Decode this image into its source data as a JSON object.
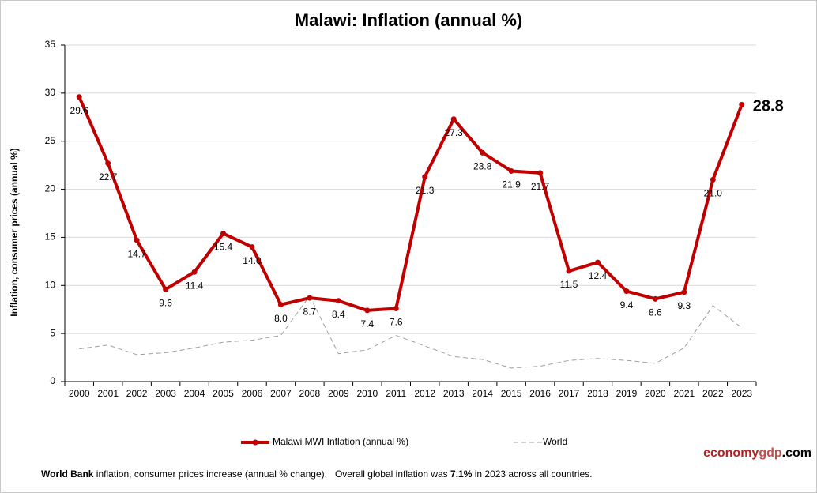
{
  "chart_data": {
    "type": "line",
    "title": "Malawi: Inflation (annual %)",
    "y_label": "Inflation, consumer prices (annual %)",
    "categories": [
      "2000",
      "2001",
      "2002",
      "2003",
      "2004",
      "2005",
      "2006",
      "2007",
      "2008",
      "2009",
      "2010",
      "2011",
      "2012",
      "2013",
      "2014",
      "2015",
      "2016",
      "2017",
      "2018",
      "2019",
      "2020",
      "2021",
      "2022",
      "2023"
    ],
    "series": [
      {
        "name": "Malawi MWI Inflation (annual %)",
        "color": "#c00000",
        "values": [
          29.6,
          22.7,
          14.7,
          9.6,
          11.4,
          15.4,
          14.0,
          8.0,
          8.7,
          8.4,
          7.4,
          7.6,
          21.3,
          27.3,
          23.8,
          21.9,
          21.7,
          11.5,
          12.4,
          9.4,
          8.6,
          9.3,
          21.0,
          28.8
        ],
        "value_labels": [
          "29.6",
          "22.7",
          "14.7",
          "9.6",
          "11.4",
          "15.4",
          "14.0",
          "8.0",
          "8.7",
          "8.4",
          "7.4",
          "7.6",
          "21.3",
          "27.3",
          "23.8",
          "21.9",
          "21.7",
          "11.5",
          "12.4",
          "9.4",
          "8.6",
          "9.3",
          "21.0",
          "28.8"
        ]
      },
      {
        "name": "World",
        "color": "#a0a0a0",
        "values": [
          3.4,
          3.8,
          2.8,
          3.0,
          3.5,
          4.1,
          4.3,
          4.8,
          8.9,
          2.9,
          3.3,
          4.8,
          3.7,
          2.6,
          2.3,
          1.4,
          1.6,
          2.2,
          2.4,
          2.2,
          1.9,
          3.5,
          7.9,
          5.6
        ]
      }
    ],
    "ylim": [
      0,
      35
    ],
    "yticks": [
      0,
      5,
      10,
      15,
      20,
      25,
      30,
      35
    ],
    "grid": true,
    "legend": "bottom"
  },
  "brand": [
    "economy",
    "gdp",
    ".com"
  ],
  "footer": [
    "World Bank",
    " inflation, consumer prices increase (annual % change).   Overall global inflation was ",
    "7.1%",
    " in 2023 across all countries."
  ]
}
